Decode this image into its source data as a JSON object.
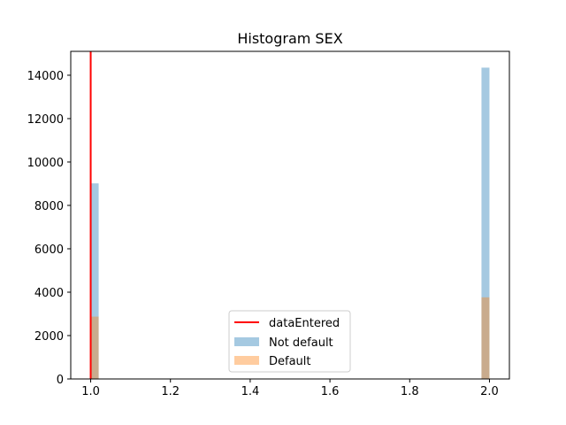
{
  "chart_data": {
    "type": "bar",
    "title": "Histogram SEX",
    "xlabel": "",
    "ylabel": "",
    "xlim": [
      0.95,
      2.05
    ],
    "ylim": [
      0,
      15100
    ],
    "x_ticks": [
      1.0,
      1.2,
      1.4,
      1.6,
      1.8,
      2.0
    ],
    "x_tick_labels": [
      "1.0",
      "1.2",
      "1.4",
      "1.6",
      "1.8",
      "2.0"
    ],
    "y_ticks": [
      0,
      2000,
      4000,
      6000,
      8000,
      10000,
      12000,
      14000
    ],
    "y_tick_labels": [
      "0",
      "2000",
      "4000",
      "6000",
      "8000",
      "10000",
      "12000",
      "14000"
    ],
    "bin_width": 0.02,
    "series": [
      {
        "name": "Not default",
        "color": "#1f77b4",
        "opacity": 0.4,
        "bins": [
          {
            "x_start": 1.0,
            "value": 9015
          },
          {
            "x_start": 1.98,
            "value": 14349
          }
        ]
      },
      {
        "name": "Default",
        "color": "#ff7f0e",
        "opacity": 0.4,
        "bins": [
          {
            "x_start": 1.0,
            "value": 2873
          },
          {
            "x_start": 1.98,
            "value": 3763
          }
        ]
      }
    ],
    "reference_line": {
      "name": "dataEntered",
      "x": 1.0,
      "color": "#ff0000"
    },
    "legend": {
      "position": "lower-center",
      "entries": [
        "dataEntered",
        "Not default",
        "Default"
      ]
    },
    "grid": false
  }
}
